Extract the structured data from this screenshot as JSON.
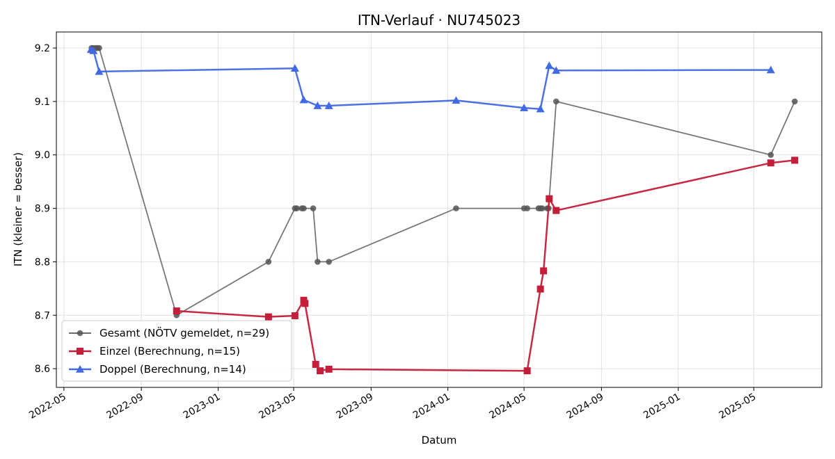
{
  "chart_data": {
    "type": "line",
    "title": "ITN-Verlauf · NU745023",
    "xlabel": "Datum",
    "ylabel": "ITN  (kleiner = besser)",
    "xlim": [
      "2022-04-19",
      "2025-08-17"
    ],
    "ylim": [
      8.565,
      9.23
    ],
    "x_ticks": [
      "2022-05-01",
      "2022-09-01",
      "2023-01-01",
      "2023-05-01",
      "2023-09-01",
      "2024-01-01",
      "2024-05-01",
      "2024-09-01",
      "2025-01-01",
      "2025-05-01"
    ],
    "x_tick_labels": [
      "2022-05",
      "2022-09",
      "2023-01",
      "2023-05",
      "2023-09",
      "2024-01",
      "2024-05",
      "2024-09",
      "2025-01",
      "2025-05"
    ],
    "y_ticks": [
      8.6,
      8.7,
      8.8,
      8.9,
      9.0,
      9.1,
      9.2
    ],
    "y_tick_labels": [
      "8.6",
      "8.7",
      "8.8",
      "8.9",
      "9.0",
      "9.1",
      "9.2"
    ],
    "grid": true,
    "legend_position": "bottom-left",
    "colors": {
      "gesamt": "#555555",
      "einzel": "#c41e3a",
      "doppel": "#4169e1"
    },
    "series": [
      {
        "name": "Gesamt (NÖTV gemeldet, n=29)",
        "marker": "circle",
        "color": "#555555",
        "points": [
          {
            "x": "2022-06-14",
            "y": 9.2
          },
          {
            "x": "2022-06-16",
            "y": 9.2
          },
          {
            "x": "2022-06-20",
            "y": 9.2
          },
          {
            "x": "2022-06-23",
            "y": 9.2
          },
          {
            "x": "2022-06-26",
            "y": 9.2
          },
          {
            "x": "2022-10-27",
            "y": 8.7
          },
          {
            "x": "2023-03-22",
            "y": 8.8
          },
          {
            "x": "2023-05-03",
            "y": 8.9
          },
          {
            "x": "2023-05-06",
            "y": 8.9
          },
          {
            "x": "2023-05-14",
            "y": 8.9
          },
          {
            "x": "2023-05-17",
            "y": 8.9
          },
          {
            "x": "2023-06-01",
            "y": 8.9
          },
          {
            "x": "2023-06-08",
            "y": 8.8
          },
          {
            "x": "2023-06-26",
            "y": 8.8
          },
          {
            "x": "2024-01-14",
            "y": 8.9
          },
          {
            "x": "2024-05-01",
            "y": 8.9
          },
          {
            "x": "2024-05-06",
            "y": 8.9
          },
          {
            "x": "2024-05-24",
            "y": 8.9
          },
          {
            "x": "2024-05-27",
            "y": 8.9
          },
          {
            "x": "2024-05-30",
            "y": 8.9
          },
          {
            "x": "2024-06-07",
            "y": 8.9
          },
          {
            "x": "2024-06-09",
            "y": 8.9
          },
          {
            "x": "2024-06-21",
            "y": 9.1
          },
          {
            "x": "2025-05-28",
            "y": 9.0
          },
          {
            "x": "2025-07-05",
            "y": 9.1
          }
        ]
      },
      {
        "name": "Einzel (Berechnung, n=15)",
        "marker": "square",
        "color": "#c41e3a",
        "points": [
          {
            "x": "2022-10-27",
            "y": 8.708
          },
          {
            "x": "2023-03-22",
            "y": 8.697
          },
          {
            "x": "2023-05-03",
            "y": 8.699
          },
          {
            "x": "2023-05-17",
            "y": 8.728
          },
          {
            "x": "2023-05-19",
            "y": 8.722
          },
          {
            "x": "2023-06-05",
            "y": 8.608
          },
          {
            "x": "2023-06-12",
            "y": 8.596
          },
          {
            "x": "2023-06-26",
            "y": 8.599
          },
          {
            "x": "2024-05-06",
            "y": 8.596
          },
          {
            "x": "2024-05-27",
            "y": 8.749
          },
          {
            "x": "2024-06-01",
            "y": 8.783
          },
          {
            "x": "2024-06-10",
            "y": 8.918
          },
          {
            "x": "2024-06-21",
            "y": 8.896
          },
          {
            "x": "2025-05-28",
            "y": 8.985
          },
          {
            "x": "2025-07-05",
            "y": 8.99
          }
        ]
      },
      {
        "name": "Doppel (Berechnung, n=14)",
        "marker": "triangle",
        "color": "#4169e1",
        "points": [
          {
            "x": "2022-06-13",
            "y": 9.197
          },
          {
            "x": "2022-06-17",
            "y": 9.195
          },
          {
            "x": "2022-06-26",
            "y": 9.156
          },
          {
            "x": "2023-05-03",
            "y": 9.162
          },
          {
            "x": "2023-05-17",
            "y": 9.103
          },
          {
            "x": "2023-06-08",
            "y": 9.092
          },
          {
            "x": "2023-06-26",
            "y": 9.092
          },
          {
            "x": "2024-01-14",
            "y": 9.102
          },
          {
            "x": "2024-05-01",
            "y": 9.088
          },
          {
            "x": "2024-05-27",
            "y": 9.086
          },
          {
            "x": "2024-06-10",
            "y": 9.167
          },
          {
            "x": "2024-06-21",
            "y": 9.158
          },
          {
            "x": "2025-05-28",
            "y": 9.159
          }
        ]
      }
    ]
  }
}
